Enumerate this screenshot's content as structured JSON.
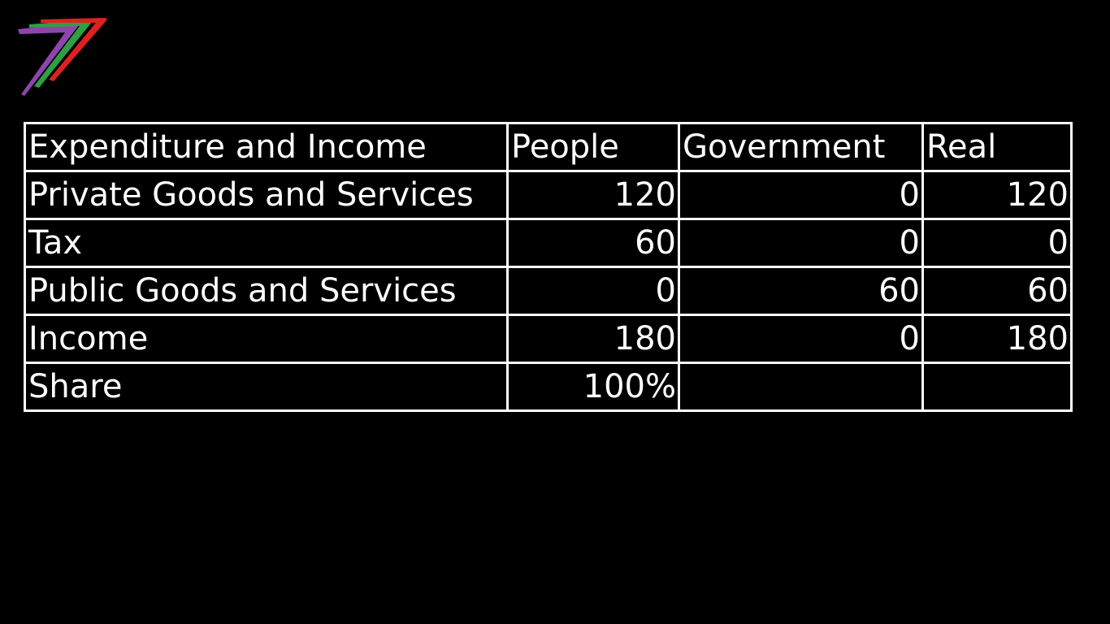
{
  "logo": {
    "name": "seven-stripes-logo",
    "colors": [
      "#8e44ad",
      "#2ea043",
      "#e02020"
    ]
  },
  "table": {
    "headers": [
      "Expenditure and Income",
      "People",
      "Government",
      "Real"
    ],
    "rows": [
      {
        "label": "Private Goods and Services",
        "people": "120",
        "government": "0",
        "real": "120"
      },
      {
        "label": "Tax",
        "people": "60",
        "government": "0",
        "real": "0"
      },
      {
        "label": "Public Goods and Services",
        "people": "0",
        "government": "60",
        "real": "60"
      },
      {
        "label": "Income",
        "people": "180",
        "government": "0",
        "real": "180"
      },
      {
        "label": "Share",
        "people": "100%",
        "government": "",
        "real": ""
      }
    ]
  }
}
